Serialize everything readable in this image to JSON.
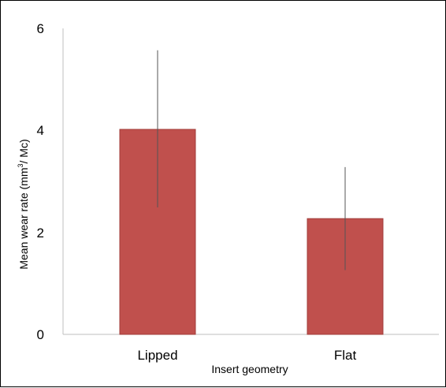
{
  "chart_data": {
    "type": "bar",
    "categories": [
      "Lipped",
      "Flat"
    ],
    "values": [
      4.02,
      2.27
    ],
    "error_bars": [
      {
        "low": 2.49,
        "high": 5.57
      },
      {
        "low": 1.26,
        "high": 3.28
      }
    ],
    "xlabel": "Insert geometry",
    "ylabel": {
      "prefix": "Mean wear rate (mm",
      "superscript": "3",
      "suffix": "/ Mc)"
    },
    "ylim": [
      0,
      6
    ],
    "yticks": [
      "0",
      "2",
      "4",
      "6"
    ],
    "grid": false,
    "legend": "none",
    "colors": {
      "bar": "#c0504d",
      "bar_stroke": "#a13d3a",
      "axis": "#bfbfbf",
      "error_bar": "#555555"
    }
  }
}
